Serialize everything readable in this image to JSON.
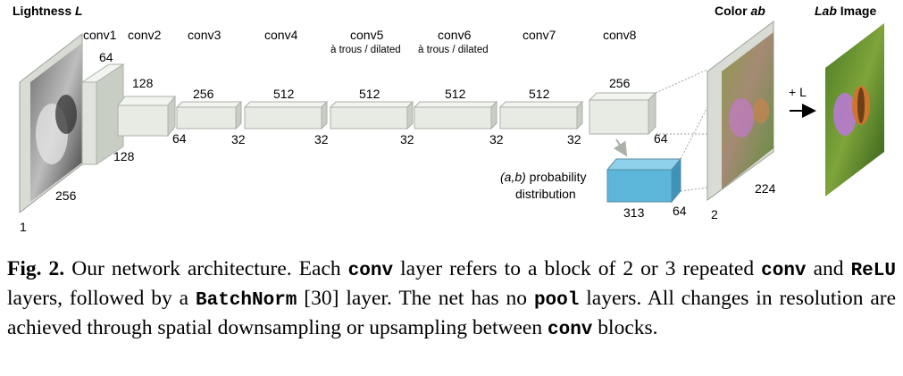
{
  "diagram": {
    "input_title": {
      "normal": "Lightness ",
      "italic": "L"
    },
    "color_ab_title": {
      "normal": "Color ",
      "italic": "ab"
    },
    "lab_title": {
      "italic": "Lab",
      "normal": " Image"
    },
    "conv_labels": [
      "conv1",
      "conv2",
      "conv3",
      "conv4",
      "conv5",
      "conv6",
      "conv7",
      "conv8"
    ],
    "conv_sublabels": {
      "conv5": "à trous / dilated",
      "conv6": "à trous / dilated"
    },
    "channels_top": [
      "64",
      "128",
      "256",
      "512",
      "512",
      "512",
      "512",
      "256"
    ],
    "spatial": {
      "input_w": "256",
      "input_c": "1",
      "conv1_s": "128",
      "conv2_s": "64",
      "conv3_s": "32",
      "conv4_s": "32",
      "conv5_s": "32",
      "conv6_s": "32",
      "conv7_s": "32",
      "conv8_s": "64"
    },
    "prob_label_line1_italic": "(a,b)",
    "prob_label_line1_rest": " probability",
    "prob_label_line2": "distribution",
    "prob_dims": {
      "w": "313",
      "h": "64"
    },
    "ab_dims": {
      "c": "2",
      "s": "224"
    },
    "plus_l": "+ L",
    "colors": {
      "prob_box": "#5bb6d9",
      "block": "#e8ebe4",
      "block_side": "#c9ceC4",
      "block_top": "#f2f4ef"
    }
  },
  "caption": {
    "fig": "Fig. 2.",
    "segments": [
      {
        "t": " Our network architecture. Each ",
        "m": false
      },
      {
        "t": "conv",
        "m": true
      },
      {
        "t": " layer refers to a block of 2 or 3 repeated ",
        "m": false
      },
      {
        "t": "conv",
        "m": true
      },
      {
        "t": " and ",
        "m": false
      },
      {
        "t": "ReLU",
        "m": true
      },
      {
        "t": " layers, followed by a ",
        "m": false
      },
      {
        "t": "BatchNorm",
        "m": true
      },
      {
        "t": " [30] layer. The net has no ",
        "m": false
      },
      {
        "t": "pool",
        "m": true
      },
      {
        "t": " layers. All changes in resolution are achieved through spatial downsampling or upsampling between ",
        "m": false
      },
      {
        "t": "conv",
        "m": true
      },
      {
        "t": " blocks.",
        "m": false
      }
    ]
  }
}
